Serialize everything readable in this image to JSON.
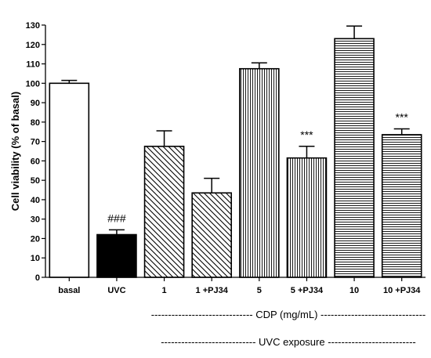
{
  "chart_data": {
    "type": "bar",
    "ylabel": "Cell viability (% of basal)",
    "ylim": [
      0,
      130
    ],
    "yticks": [
      0,
      10,
      20,
      30,
      40,
      50,
      60,
      70,
      80,
      90,
      100,
      110,
      120,
      130
    ],
    "categories": [
      "basal",
      "UVC",
      "1",
      "1 +PJ34",
      "5",
      "5 +PJ34",
      "10",
      "10 +PJ34"
    ],
    "values": [
      100,
      22,
      67.5,
      43.5,
      107.5,
      61.5,
      123,
      73.5
    ],
    "errors": [
      1.5,
      2.5,
      8,
      7.5,
      3,
      6,
      6.5,
      3
    ],
    "fills": [
      "none",
      "solid",
      "diag-right",
      "diag-right",
      "vertical",
      "vertical",
      "horizontal",
      "horizontal"
    ],
    "annotations": [
      "",
      "###",
      "",
      "",
      "",
      "***",
      "",
      "***"
    ],
    "colors": {
      "bar_stroke": "#000000",
      "solid": "#000000",
      "background": "#ffffff"
    }
  },
  "group_labels": {
    "cdp": "------------------------------ CDP (mg/mL) -------------------------------",
    "uvc": "---------------------------- UVC exposure --------------------------"
  }
}
